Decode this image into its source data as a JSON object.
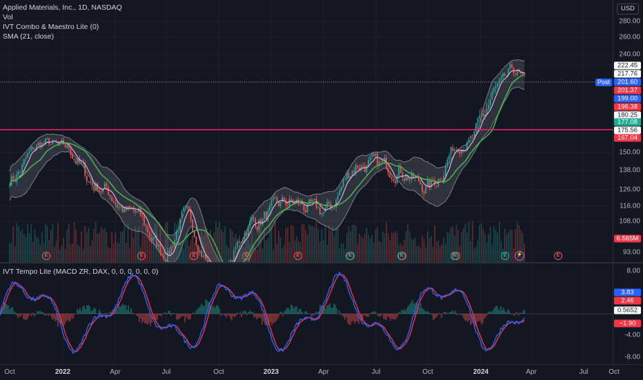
{
  "legend": {
    "title": "Applied Materials, Inc., 1D, NASDAQ",
    "vol": "Vol",
    "indicator1": "IVT Combo & Maestro Lite (0)",
    "indicator2": "SMA (21, close)",
    "osc": "IVT Tempo Lite (MACD ZR, DAX, 0, 0, 0, 0, 0, 0)"
  },
  "currency": "USD",
  "post_label": "Post",
  "price_ticks": [
    "280.00",
    "260.00",
    "240.00",
    "150.00",
    "138.00",
    "126.00",
    "116.00",
    "108.00",
    "93.00"
  ],
  "price_tags": [
    {
      "text": "222.45",
      "bg": "#ffffff",
      "fg": "#131722"
    },
    {
      "text": "217.76",
      "bg": "#ffffff",
      "fg": "#131722"
    },
    {
      "text": "201.60",
      "bg": "#2962ff",
      "fg": "#ffffff"
    },
    {
      "text": "201.37",
      "bg": "#f23645",
      "fg": "#ffffff"
    },
    {
      "text": "199.00",
      "bg": "#2962ff",
      "fg": "#ffffff"
    },
    {
      "text": "198.38",
      "bg": "#f23645",
      "fg": "#ffffff"
    },
    {
      "text": "180.25",
      "bg": "#ffffff",
      "fg": "#131722"
    },
    {
      "text": "177.08",
      "bg": "#22ab94",
      "fg": "#ffffff"
    },
    {
      "text": "175.56",
      "bg": "#ffffff",
      "fg": "#131722"
    },
    {
      "text": "167.04",
      "bg": "#f23645",
      "fg": "#ffffff"
    },
    {
      "text": "6.565M",
      "bg": "#f23645",
      "fg": "#ffffff"
    }
  ],
  "osc_ticks": [
    "8.00",
    "-4.00",
    "-8.00"
  ],
  "osc_tags": [
    {
      "text": "3.83",
      "bg": "#2962ff",
      "fg": "#ffffff"
    },
    {
      "text": "2.46",
      "bg": "#f23645",
      "fg": "#ffffff"
    },
    {
      "text": "0.5652",
      "bg": "#ffffff",
      "fg": "#131722"
    },
    {
      "text": "−1.90",
      "bg": "#f23645",
      "fg": "#ffffff"
    }
  ],
  "time_labels": [
    {
      "text": "Oct",
      "strong": false
    },
    {
      "text": "2022",
      "strong": true
    },
    {
      "text": "Apr",
      "strong": false
    },
    {
      "text": "Jul",
      "strong": false
    },
    {
      "text": "Oct",
      "strong": false
    },
    {
      "text": "2023",
      "strong": true
    },
    {
      "text": "Apr",
      "strong": false
    },
    {
      "text": "Jul",
      "strong": false
    },
    {
      "text": "Oct",
      "strong": false
    },
    {
      "text": "2024",
      "strong": true
    },
    {
      "text": "Apr",
      "strong": false
    },
    {
      "text": "Jul",
      "strong": false
    },
    {
      "text": "Oct",
      "strong": false
    }
  ],
  "earnings_badge": "E",
  "colors": {
    "background": "#131722",
    "up": "#26a69a",
    "down": "#ef5350",
    "sma": "#4caf50",
    "band": "#787b86",
    "macd": "#2962ff",
    "signal": "#f23645",
    "support_line": "#f7226a"
  },
  "chart_data": [
    {
      "type": "line",
      "title": "Applied Materials, Inc., 1D, NASDAQ",
      "x_range": [
        "2021-10",
        "2024-10"
      ],
      "price_scale": "log",
      "series": [
        {
          "name": "SMA (21, close)"
        }
      ],
      "key_points": [
        {
          "date": "2021-10",
          "price": 133
        },
        {
          "date": "2021-12",
          "price": 160
        },
        {
          "date": "2022-01",
          "price": 155
        },
        {
          "date": "2022-03",
          "price": 128
        },
        {
          "date": "2022-05",
          "price": 112
        },
        {
          "date": "2022-07",
          "price": 93
        },
        {
          "date": "2022-08",
          "price": 110
        },
        {
          "date": "2022-10",
          "price": 82
        },
        {
          "date": "2022-12",
          "price": 108
        },
        {
          "date": "2023-02",
          "price": 118
        },
        {
          "date": "2023-04",
          "price": 113
        },
        {
          "date": "2023-06",
          "price": 142
        },
        {
          "date": "2023-08",
          "price": 140
        },
        {
          "date": "2023-10",
          "price": 128
        },
        {
          "date": "2023-12",
          "price": 160
        },
        {
          "date": "2024-02",
          "price": 195
        },
        {
          "date": "2024-03",
          "price": 215
        },
        {
          "date": "2024-03-20",
          "price": 201.37
        }
      ],
      "horizontal_line": 175.56,
      "last_volume": "6.565M"
    },
    {
      "type": "line",
      "title": "IVT Tempo Lite (MACD ZR, DAX, 0, 0, 0, 0, 0, 0)",
      "ylim": [
        -9,
        9
      ],
      "last_values": {
        "macd": 3.83,
        "signal": 2.46
      }
    }
  ]
}
